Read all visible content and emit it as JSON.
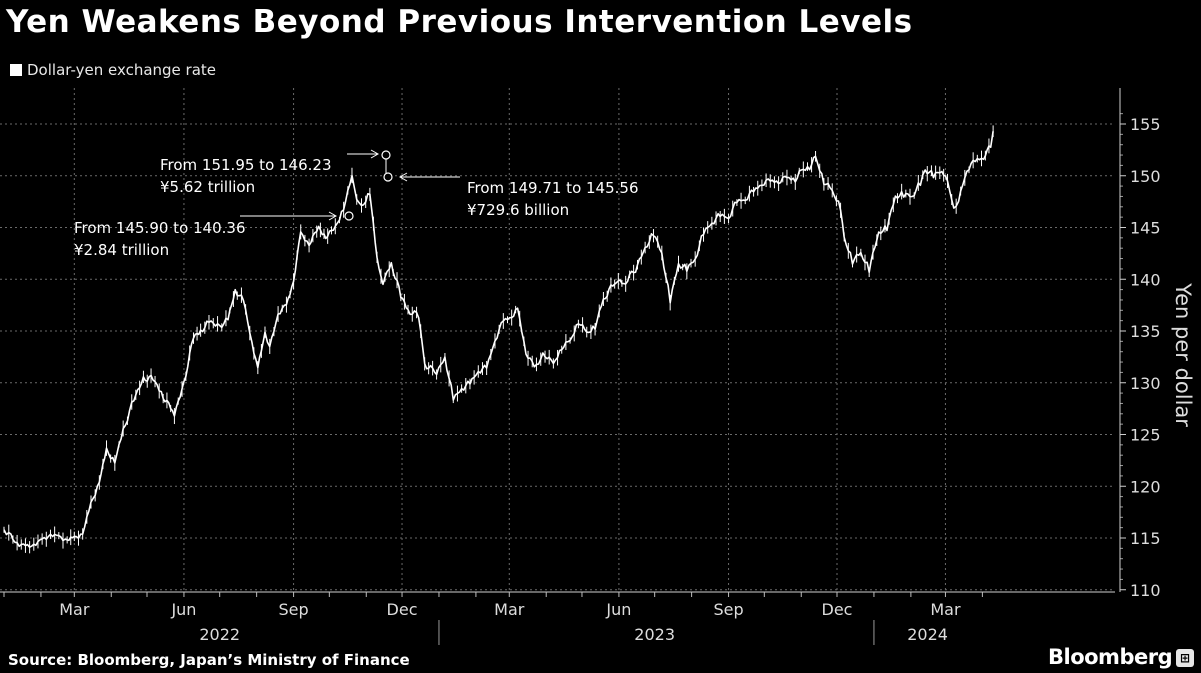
{
  "title": "Yen Weakens Beyond Previous Intervention Levels",
  "source": "Source: Bloomberg, Japan’s Ministry of Finance",
  "brand": "Bloomberg",
  "colors": {
    "background": "#000000",
    "line": "#ffffff",
    "grid": "#6a6a6a",
    "text": "#dddddd"
  },
  "chart_data": {
    "type": "line",
    "title": "Yen Weakens Beyond Previous Intervention Levels",
    "legend": [
      "Dollar-yen exchange rate"
    ],
    "legend_position": "top-left",
    "ylabel": "Yen per dollar",
    "ylim": [
      110,
      157
    ],
    "yticks": [
      110,
      115,
      120,
      125,
      130,
      135,
      140,
      145,
      150,
      155
    ],
    "xticks": [
      {
        "date": "2022-03-01",
        "label": "Mar"
      },
      {
        "date": "2022-06-01",
        "label": "Jun"
      },
      {
        "date": "2022-09-01",
        "label": "Sep"
      },
      {
        "date": "2022-12-01",
        "label": "Dec"
      },
      {
        "date": "2023-03-01",
        "label": "Mar"
      },
      {
        "date": "2023-06-01",
        "label": "Jun"
      },
      {
        "date": "2023-09-01",
        "label": "Sep"
      },
      {
        "date": "2023-12-01",
        "label": "Dec"
      },
      {
        "date": "2024-03-01",
        "label": "Mar"
      }
    ],
    "years": [
      {
        "label": "2022",
        "center": "2022-07-01"
      },
      {
        "label": "2023",
        "center": "2023-07-01"
      },
      {
        "label": "2024",
        "center": "2024-02-15"
      }
    ],
    "year_dividers": [
      "2023-01-01",
      "2024-01-01"
    ],
    "xlim": [
      "2022-01-01",
      "2024-04-10"
    ],
    "grid": true,
    "series": [
      {
        "name": "Dollar-yen exchange rate",
        "points": [
          [
            "2022-01-01",
            115.8
          ],
          [
            "2022-01-05",
            115.5
          ],
          [
            "2022-01-12",
            114.6
          ],
          [
            "2022-01-19",
            114.2
          ],
          [
            "2022-01-26",
            114.5
          ],
          [
            "2022-02-02",
            114.8
          ],
          [
            "2022-02-09",
            115.5
          ],
          [
            "2022-02-16",
            115.1
          ],
          [
            "2022-02-23",
            115.0
          ],
          [
            "2022-03-01",
            115.0
          ],
          [
            "2022-03-08",
            115.6
          ],
          [
            "2022-03-15",
            118.3
          ],
          [
            "2022-03-22",
            120.6
          ],
          [
            "2022-03-28",
            123.5
          ],
          [
            "2022-04-04",
            122.5
          ],
          [
            "2022-04-11",
            125.4
          ],
          [
            "2022-04-20",
            128.5
          ],
          [
            "2022-04-28",
            130.4
          ],
          [
            "2022-05-06",
            130.5
          ],
          [
            "2022-05-13",
            129.0
          ],
          [
            "2022-05-24",
            127.0
          ],
          [
            "2022-06-01",
            130.0
          ],
          [
            "2022-06-09",
            134.5
          ],
          [
            "2022-06-15",
            135.0
          ],
          [
            "2022-06-22",
            136.0
          ],
          [
            "2022-07-01",
            135.5
          ],
          [
            "2022-07-08",
            136.2
          ],
          [
            "2022-07-14",
            139.0
          ],
          [
            "2022-07-21",
            138.0
          ],
          [
            "2022-07-28",
            134.0
          ],
          [
            "2022-08-02",
            131.5
          ],
          [
            "2022-08-08",
            135.0
          ],
          [
            "2022-08-12",
            133.5
          ],
          [
            "2022-08-19",
            136.8
          ],
          [
            "2022-08-26",
            137.5
          ],
          [
            "2022-09-01",
            140.0
          ],
          [
            "2022-09-07",
            144.5
          ],
          [
            "2022-09-14",
            143.5
          ],
          [
            "2022-09-22",
            145.0
          ],
          [
            "2022-09-28",
            144.2
          ],
          [
            "2022-10-06",
            145.0
          ],
          [
            "2022-10-13",
            147.0
          ],
          [
            "2022-10-20",
            149.9
          ],
          [
            "2022-10-24",
            148.0
          ],
          [
            "2022-10-28",
            147.0
          ],
          [
            "2022-11-04",
            148.5
          ],
          [
            "2022-11-10",
            142.0
          ],
          [
            "2022-11-15",
            139.8
          ],
          [
            "2022-11-22",
            141.5
          ],
          [
            "2022-11-30",
            138.5
          ],
          [
            "2022-12-06",
            137.0
          ],
          [
            "2022-12-15",
            136.5
          ],
          [
            "2022-12-20",
            131.8
          ],
          [
            "2022-12-30",
            131.0
          ],
          [
            "2023-01-06",
            132.5
          ],
          [
            "2023-01-13",
            128.5
          ],
          [
            "2023-01-20",
            129.5
          ],
          [
            "2023-01-27",
            130.0
          ],
          [
            "2023-02-03",
            131.2
          ],
          [
            "2023-02-10",
            131.5
          ],
          [
            "2023-02-17",
            134.2
          ],
          [
            "2023-02-24",
            136.0
          ],
          [
            "2023-03-03",
            136.5
          ],
          [
            "2023-03-08",
            137.2
          ],
          [
            "2023-03-15",
            133.0
          ],
          [
            "2023-03-22",
            131.5
          ],
          [
            "2023-03-31",
            132.8
          ],
          [
            "2023-04-07",
            131.8
          ],
          [
            "2023-04-14",
            133.5
          ],
          [
            "2023-04-21",
            134.0
          ],
          [
            "2023-04-28",
            136.0
          ],
          [
            "2023-05-05",
            134.8
          ],
          [
            "2023-05-12",
            135.5
          ],
          [
            "2023-05-19",
            138.0
          ],
          [
            "2023-05-30",
            140.0
          ],
          [
            "2023-06-05",
            139.5
          ],
          [
            "2023-06-15",
            141.0
          ],
          [
            "2023-06-23",
            143.0
          ],
          [
            "2023-06-30",
            144.5
          ],
          [
            "2023-07-07",
            142.5
          ],
          [
            "2023-07-14",
            138.0
          ],
          [
            "2023-07-21",
            141.5
          ],
          [
            "2023-07-28",
            141.0
          ],
          [
            "2023-08-04",
            142.0
          ],
          [
            "2023-08-11",
            144.5
          ],
          [
            "2023-08-18",
            145.5
          ],
          [
            "2023-08-25",
            146.2
          ],
          [
            "2023-09-01",
            146.0
          ],
          [
            "2023-09-08",
            147.5
          ],
          [
            "2023-09-15",
            147.8
          ],
          [
            "2023-09-22",
            148.5
          ],
          [
            "2023-09-29",
            149.3
          ],
          [
            "2023-10-06",
            149.5
          ],
          [
            "2023-10-13",
            149.5
          ],
          [
            "2023-10-20",
            149.8
          ],
          [
            "2023-10-27",
            149.7
          ],
          [
            "2023-11-01",
            150.5
          ],
          [
            "2023-11-08",
            150.9
          ],
          [
            "2023-11-13",
            151.8
          ],
          [
            "2023-11-20",
            149.5
          ],
          [
            "2023-11-27",
            148.5
          ],
          [
            "2023-12-04",
            147.0
          ],
          [
            "2023-12-07",
            144.0
          ],
          [
            "2023-12-14",
            141.8
          ],
          [
            "2023-12-21",
            142.5
          ],
          [
            "2023-12-28",
            141.0
          ],
          [
            "2024-01-05",
            144.5
          ],
          [
            "2024-01-12",
            145.0
          ],
          [
            "2024-01-19",
            148.0
          ],
          [
            "2024-01-26",
            148.2
          ],
          [
            "2024-02-02",
            148.0
          ],
          [
            "2024-02-09",
            149.3
          ],
          [
            "2024-02-13",
            150.6
          ],
          [
            "2024-02-20",
            150.0
          ],
          [
            "2024-02-27",
            150.5
          ],
          [
            "2024-03-01",
            150.1
          ],
          [
            "2024-03-08",
            147.0
          ],
          [
            "2024-03-12",
            147.6
          ],
          [
            "2024-03-19",
            150.6
          ],
          [
            "2024-03-26",
            151.4
          ],
          [
            "2024-04-02",
            151.8
          ],
          [
            "2024-04-05",
            152.5
          ],
          [
            "2024-04-08",
            153.0
          ],
          [
            "2024-04-10",
            154.3
          ]
        ]
      }
    ],
    "annotations": [
      {
        "text": "From 145.90 to 140.36",
        "text2": "¥2.84 trillion",
        "date": "2022-09-22",
        "value": 145.9,
        "marker_value": 145.9,
        "arrow": "right"
      },
      {
        "text": "From 151.95 to 146.23",
        "text2": "¥5.62 trillion",
        "date": "2022-10-21",
        "value": 151.95,
        "marker_value": 151.95,
        "arrow": "right"
      },
      {
        "text": "From 149.71 to 145.56",
        "text2": "¥729.6 billion",
        "date": "2022-10-24",
        "value": 149.71,
        "marker_value": 149.71,
        "arrow": "left"
      }
    ]
  }
}
